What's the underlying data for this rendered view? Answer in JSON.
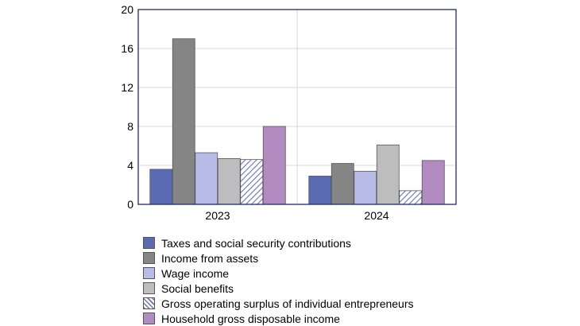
{
  "chart_data": {
    "type": "bar",
    "categories": [
      "2023",
      "2024"
    ],
    "series": [
      {
        "name": "Taxes and social security contributions",
        "values": [
          3.6,
          2.9
        ],
        "color": "#5b6bb3",
        "pattern": "solid"
      },
      {
        "name": "Income from assets",
        "values": [
          17.0,
          4.2
        ],
        "color": "#858585",
        "pattern": "solid"
      },
      {
        "name": "Wage income",
        "values": [
          5.3,
          3.4
        ],
        "color": "#b8bce6",
        "pattern": "solid"
      },
      {
        "name": "Social benefits",
        "values": [
          4.7,
          6.1
        ],
        "color": "#bdbdbd",
        "pattern": "solid"
      },
      {
        "name": "Gross operating surplus of individual entrepreneurs",
        "values": [
          4.6,
          1.4
        ],
        "color": "#c8cbe8",
        "pattern": "hatch"
      },
      {
        "name": "Household gross disposable income",
        "values": [
          8.0,
          4.5
        ],
        "color": "#b28bc0",
        "pattern": "solid"
      }
    ],
    "ylim": [
      0,
      20
    ],
    "yticks": [
      "0",
      "4",
      "8",
      "12",
      "16",
      "20"
    ],
    "title": "",
    "xlabel": "",
    "ylabel": "",
    "grid": true,
    "legend_position": "bottom",
    "axis_color": "#1f2a7a",
    "grid_color": "#d9d9d9"
  }
}
